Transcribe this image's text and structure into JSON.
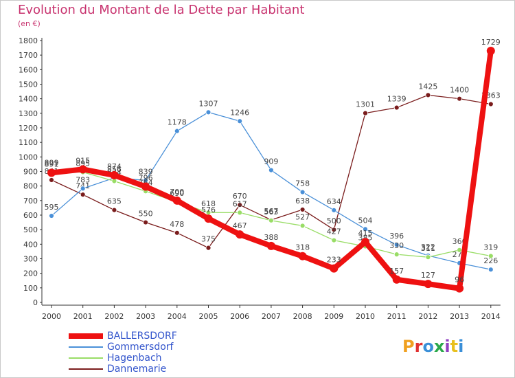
{
  "header": {
    "title": "Evolution du Montant de la Dette par Habitant",
    "unit": "(en €)"
  },
  "logo": {
    "text": "Proxiti",
    "colors": [
      "#f0a020",
      "#e03030",
      "#3a8fd8",
      "#2aa84a",
      "#9040c0",
      "#e8c020",
      "#3a8fd8"
    ]
  },
  "chart_data": {
    "type": "line",
    "title": "Evolution du Montant de la Dette par Habitant",
    "subtitle": "(en €)",
    "xlabel": "",
    "ylabel": "",
    "x": [
      "2000",
      "2001",
      "2002",
      "2003",
      "2004",
      "2005",
      "2006",
      "2007",
      "2008",
      "2009",
      "2010",
      "2011",
      "2012",
      "2013",
      "2014"
    ],
    "ylim": [
      0,
      1800
    ],
    "yticks": [
      0,
      100,
      200,
      300,
      400,
      500,
      600,
      700,
      800,
      900,
      1000,
      1100,
      1200,
      1300,
      1400,
      1500,
      1600,
      1700,
      1800
    ],
    "grid": false,
    "legend": "bottom-left",
    "series": [
      {
        "name": "BALLERSDORF",
        "color": "#ee1111",
        "values": [
          891,
          915,
          874,
          796,
          700,
          576,
          467,
          388,
          318,
          233,
          415,
          157,
          127,
          96,
          1729
        ]
      },
      {
        "name": "Gommersdorf",
        "color": "#4a90d8",
        "values": [
          595,
          783,
          856,
          839,
          1178,
          1307,
          1246,
          909,
          758,
          634,
          504,
          396,
          322,
          270,
          226
        ]
      },
      {
        "name": "Hagenbach",
        "color": "#99dd66",
        "values": [
          899,
          895,
          834,
          764,
          690,
          618,
          617,
          563,
          527,
          427,
          385,
          330,
          311,
          360,
          319
        ]
      },
      {
        "name": "Dannemarie",
        "color": "#7a1c1c",
        "values": [
          841,
          741,
          635,
          550,
          478,
          375,
          670,
          567,
          638,
          500,
          1301,
          1339,
          1425,
          1400,
          1363
        ]
      }
    ]
  }
}
